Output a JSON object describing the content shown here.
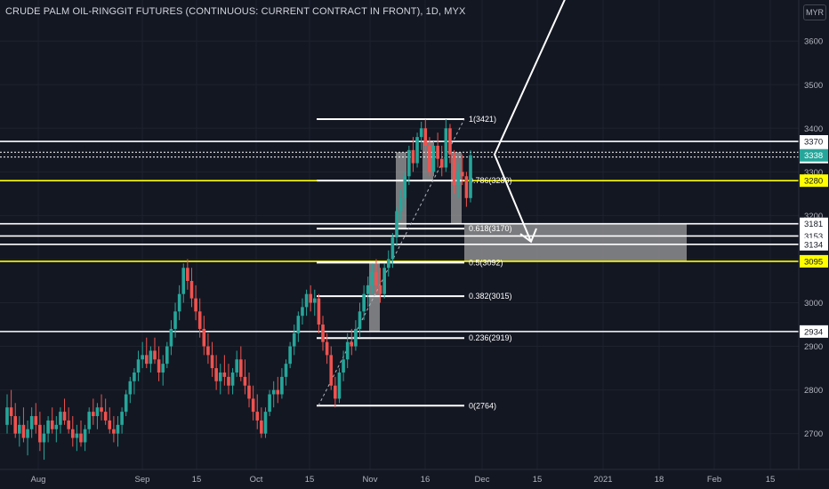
{
  "title": "CRUDE PALM OIL-RINGGIT FUTURES (CONTINUOUS: CURRENT CONTRACT IN FRONT), 1D, MYX",
  "currency": "MYR",
  "colors": {
    "background": "#131722",
    "up": "#26a69a",
    "down": "#ef5350",
    "axis_text": "#b2b5be",
    "line": "#ffffff",
    "highlight": "#ffff00",
    "zone": "#9e9e9e"
  },
  "chart_data": {
    "type": "candlestick",
    "title": "CRUDE PALM OIL-RINGGIT FUTURES (CONTINUOUS: CURRENT CONTRACT IN FRONT), 1D, MYX",
    "ylim": [
      2620,
      3670
    ],
    "y_ticks": [
      2700,
      2800,
      2900,
      3000,
      3100,
      3200,
      3300,
      3400,
      3500,
      3600
    ],
    "x_ticks": [
      "Aug",
      "Sep",
      "15",
      "Oct",
      "15",
      "Nov",
      "16",
      "Dec",
      "15",
      "2021",
      "18",
      "Feb",
      "15"
    ],
    "candles": [
      {
        "o": 2720,
        "h": 2790,
        "l": 2700,
        "c": 2760
      },
      {
        "o": 2760,
        "h": 2800,
        "l": 2720,
        "c": 2740
      },
      {
        "o": 2740,
        "h": 2770,
        "l": 2690,
        "c": 2700
      },
      {
        "o": 2700,
        "h": 2740,
        "l": 2670,
        "c": 2720
      },
      {
        "o": 2720,
        "h": 2760,
        "l": 2680,
        "c": 2690
      },
      {
        "o": 2690,
        "h": 2730,
        "l": 2650,
        "c": 2710
      },
      {
        "o": 2710,
        "h": 2760,
        "l": 2690,
        "c": 2740
      },
      {
        "o": 2740,
        "h": 2770,
        "l": 2700,
        "c": 2720
      },
      {
        "o": 2720,
        "h": 2750,
        "l": 2660,
        "c": 2680
      },
      {
        "o": 2680,
        "h": 2720,
        "l": 2640,
        "c": 2700
      },
      {
        "o": 2700,
        "h": 2740,
        "l": 2680,
        "c": 2730
      },
      {
        "o": 2730,
        "h": 2760,
        "l": 2700,
        "c": 2710
      },
      {
        "o": 2710,
        "h": 2740,
        "l": 2680,
        "c": 2720
      },
      {
        "o": 2720,
        "h": 2760,
        "l": 2700,
        "c": 2750
      },
      {
        "o": 2750,
        "h": 2780,
        "l": 2720,
        "c": 2730
      },
      {
        "o": 2730,
        "h": 2760,
        "l": 2700,
        "c": 2710
      },
      {
        "o": 2710,
        "h": 2740,
        "l": 2670,
        "c": 2690
      },
      {
        "o": 2690,
        "h": 2720,
        "l": 2660,
        "c": 2700
      },
      {
        "o": 2700,
        "h": 2730,
        "l": 2670,
        "c": 2680
      },
      {
        "o": 2680,
        "h": 2720,
        "l": 2660,
        "c": 2710
      },
      {
        "o": 2710,
        "h": 2760,
        "l": 2700,
        "c": 2750
      },
      {
        "o": 2750,
        "h": 2780,
        "l": 2720,
        "c": 2740
      },
      {
        "o": 2740,
        "h": 2770,
        "l": 2710,
        "c": 2760
      },
      {
        "o": 2760,
        "h": 2790,
        "l": 2730,
        "c": 2750
      },
      {
        "o": 2750,
        "h": 2780,
        "l": 2720,
        "c": 2730
      },
      {
        "o": 2730,
        "h": 2760,
        "l": 2700,
        "c": 2710
      },
      {
        "o": 2710,
        "h": 2740,
        "l": 2680,
        "c": 2700
      },
      {
        "o": 2700,
        "h": 2740,
        "l": 2670,
        "c": 2720
      },
      {
        "o": 2720,
        "h": 2760,
        "l": 2700,
        "c": 2750
      },
      {
        "o": 2750,
        "h": 2800,
        "l": 2740,
        "c": 2790
      },
      {
        "o": 2790,
        "h": 2830,
        "l": 2770,
        "c": 2820
      },
      {
        "o": 2820,
        "h": 2850,
        "l": 2790,
        "c": 2840
      },
      {
        "o": 2840,
        "h": 2890,
        "l": 2820,
        "c": 2870
      },
      {
        "o": 2870,
        "h": 2910,
        "l": 2850,
        "c": 2880
      },
      {
        "o": 2880,
        "h": 2920,
        "l": 2850,
        "c": 2860
      },
      {
        "o": 2860,
        "h": 2900,
        "l": 2840,
        "c": 2890
      },
      {
        "o": 2890,
        "h": 2920,
        "l": 2860,
        "c": 2870
      },
      {
        "o": 2870,
        "h": 2900,
        "l": 2820,
        "c": 2840
      },
      {
        "o": 2840,
        "h": 2880,
        "l": 2810,
        "c": 2860
      },
      {
        "o": 2860,
        "h": 2910,
        "l": 2850,
        "c": 2900
      },
      {
        "o": 2900,
        "h": 2960,
        "l": 2880,
        "c": 2940
      },
      {
        "o": 2940,
        "h": 3000,
        "l": 2920,
        "c": 2980
      },
      {
        "o": 2980,
        "h": 3040,
        "l": 2960,
        "c": 3020
      },
      {
        "o": 3020,
        "h": 3090,
        "l": 3000,
        "c": 3080
      },
      {
        "o": 3080,
        "h": 3100,
        "l": 3030,
        "c": 3050
      },
      {
        "o": 3050,
        "h": 3080,
        "l": 2990,
        "c": 3010
      },
      {
        "o": 3010,
        "h": 3040,
        "l": 2960,
        "c": 2980
      },
      {
        "o": 2980,
        "h": 3010,
        "l": 2920,
        "c": 2940
      },
      {
        "o": 2940,
        "h": 2970,
        "l": 2880,
        "c": 2900
      },
      {
        "o": 2900,
        "h": 2930,
        "l": 2860,
        "c": 2880
      },
      {
        "o": 2880,
        "h": 2910,
        "l": 2830,
        "c": 2850
      },
      {
        "o": 2850,
        "h": 2880,
        "l": 2800,
        "c": 2820
      },
      {
        "o": 2820,
        "h": 2860,
        "l": 2790,
        "c": 2840
      },
      {
        "o": 2840,
        "h": 2880,
        "l": 2810,
        "c": 2830
      },
      {
        "o": 2830,
        "h": 2860,
        "l": 2790,
        "c": 2810
      },
      {
        "o": 2810,
        "h": 2850,
        "l": 2790,
        "c": 2840
      },
      {
        "o": 2840,
        "h": 2890,
        "l": 2830,
        "c": 2870
      },
      {
        "o": 2870,
        "h": 2900,
        "l": 2820,
        "c": 2830
      },
      {
        "o": 2830,
        "h": 2870,
        "l": 2790,
        "c": 2810
      },
      {
        "o": 2810,
        "h": 2840,
        "l": 2760,
        "c": 2780
      },
      {
        "o": 2780,
        "h": 2810,
        "l": 2730,
        "c": 2750
      },
      {
        "o": 2750,
        "h": 2790,
        "l": 2710,
        "c": 2730
      },
      {
        "o": 2730,
        "h": 2760,
        "l": 2690,
        "c": 2700
      },
      {
        "o": 2700,
        "h": 2760,
        "l": 2690,
        "c": 2750
      },
      {
        "o": 2750,
        "h": 2800,
        "l": 2740,
        "c": 2790
      },
      {
        "o": 2790,
        "h": 2820,
        "l": 2760,
        "c": 2800
      },
      {
        "o": 2800,
        "h": 2830,
        "l": 2770,
        "c": 2790
      },
      {
        "o": 2790,
        "h": 2850,
        "l": 2780,
        "c": 2830
      },
      {
        "o": 2830,
        "h": 2870,
        "l": 2810,
        "c": 2860
      },
      {
        "o": 2860,
        "h": 2910,
        "l": 2850,
        "c": 2900
      },
      {
        "o": 2900,
        "h": 2950,
        "l": 2880,
        "c": 2930
      },
      {
        "o": 2930,
        "h": 2980,
        "l": 2910,
        "c": 2970
      },
      {
        "o": 2970,
        "h": 3010,
        "l": 2950,
        "c": 2990
      },
      {
        "o": 2990,
        "h": 3030,
        "l": 2970,
        "c": 3020
      },
      {
        "o": 3020,
        "h": 3040,
        "l": 2980,
        "c": 3000
      },
      {
        "o": 3000,
        "h": 3030,
        "l": 2970,
        "c": 3010
      },
      {
        "o": 3010,
        "h": 3020,
        "l": 2930,
        "c": 2950
      },
      {
        "o": 2950,
        "h": 2970,
        "l": 2890,
        "c": 2910
      },
      {
        "o": 2910,
        "h": 2930,
        "l": 2860,
        "c": 2880
      },
      {
        "o": 2880,
        "h": 2900,
        "l": 2800,
        "c": 2810
      },
      {
        "o": 2810,
        "h": 2830,
        "l": 2760,
        "c": 2780
      },
      {
        "o": 2780,
        "h": 2850,
        "l": 2770,
        "c": 2840
      },
      {
        "o": 2840,
        "h": 2890,
        "l": 2820,
        "c": 2870
      },
      {
        "o": 2870,
        "h": 2930,
        "l": 2850,
        "c": 2910
      },
      {
        "o": 2910,
        "h": 2940,
        "l": 2880,
        "c": 2900
      },
      {
        "o": 2900,
        "h": 2960,
        "l": 2890,
        "c": 2940
      },
      {
        "o": 2940,
        "h": 3000,
        "l": 2920,
        "c": 2980
      },
      {
        "o": 2980,
        "h": 3040,
        "l": 2960,
        "c": 3020
      },
      {
        "o": 3020,
        "h": 3060,
        "l": 2990,
        "c": 3040
      },
      {
        "o": 3040,
        "h": 3090,
        "l": 3020,
        "c": 3070
      },
      {
        "o": 3070,
        "h": 3100,
        "l": 3020,
        "c": 3040
      },
      {
        "o": 3040,
        "h": 3080,
        "l": 3000,
        "c": 3020
      },
      {
        "o": 3020,
        "h": 3090,
        "l": 3010,
        "c": 3080
      },
      {
        "o": 3080,
        "h": 3120,
        "l": 3060,
        "c": 3100
      },
      {
        "o": 3100,
        "h": 3160,
        "l": 3080,
        "c": 3150
      },
      {
        "o": 3150,
        "h": 3220,
        "l": 3130,
        "c": 3210
      },
      {
        "o": 3210,
        "h": 3260,
        "l": 3190,
        "c": 3240
      },
      {
        "o": 3240,
        "h": 3300,
        "l": 3220,
        "c": 3290
      },
      {
        "o": 3290,
        "h": 3360,
        "l": 3270,
        "c": 3350
      },
      {
        "o": 3350,
        "h": 3380,
        "l": 3300,
        "c": 3320
      },
      {
        "o": 3320,
        "h": 3390,
        "l": 3310,
        "c": 3380
      },
      {
        "o": 3380,
        "h": 3415,
        "l": 3350,
        "c": 3400
      },
      {
        "o": 3400,
        "h": 3420,
        "l": 3340,
        "c": 3360
      },
      {
        "o": 3360,
        "h": 3380,
        "l": 3290,
        "c": 3300
      },
      {
        "o": 3300,
        "h": 3370,
        "l": 3290,
        "c": 3360
      },
      {
        "o": 3360,
        "h": 3390,
        "l": 3310,
        "c": 3330
      },
      {
        "o": 3330,
        "h": 3360,
        "l": 3290,
        "c": 3310
      },
      {
        "o": 3310,
        "h": 3421,
        "l": 3300,
        "c": 3400
      },
      {
        "o": 3400,
        "h": 3410,
        "l": 3320,
        "c": 3340
      },
      {
        "o": 3340,
        "h": 3350,
        "l": 3250,
        "c": 3270
      },
      {
        "o": 3270,
        "h": 3320,
        "l": 3240,
        "c": 3300
      },
      {
        "o": 3300,
        "h": 3340,
        "l": 3270,
        "c": 3290
      },
      {
        "o": 3290,
        "h": 3300,
        "l": 3220,
        "c": 3240
      },
      {
        "o": 3240,
        "h": 3350,
        "l": 3230,
        "c": 3338
      }
    ],
    "fib_levels": [
      {
        "ratio": "1",
        "price": 3421,
        "label": "1(3421)"
      },
      {
        "ratio": "0.786",
        "price": 3280,
        "label": "0.786(3280)"
      },
      {
        "ratio": "0.618",
        "price": 3170,
        "label": "0.618(3170)"
      },
      {
        "ratio": "0.5",
        "price": 3092,
        "label": "0.5(3092)"
      },
      {
        "ratio": "0.382",
        "price": 3015,
        "label": "0.382(3015)"
      },
      {
        "ratio": "0.236",
        "price": 2919,
        "label": "0.236(2919)"
      },
      {
        "ratio": "0",
        "price": 2764,
        "label": "0(2764)"
      }
    ],
    "horizontal_lines": [
      {
        "price": 3370,
        "label": "3370",
        "color": "white"
      },
      {
        "price": 3345,
        "label": "3345",
        "color": "white",
        "dotted": true
      },
      {
        "price": 3334,
        "label": "3334",
        "color": "white",
        "dotted": true
      },
      {
        "price": 3280,
        "label": "3280",
        "color": "yellow"
      },
      {
        "price": 3181,
        "label": "3181",
        "color": "white"
      },
      {
        "price": 3153,
        "label": "3153",
        "color": "white"
      },
      {
        "price": 3134,
        "label": "3134",
        "color": "white"
      },
      {
        "price": 3095,
        "label": "3095",
        "color": "yellow"
      },
      {
        "price": 2934,
        "label": "2934",
        "color": "white"
      }
    ],
    "last_price": {
      "price": 3338,
      "label": "3338"
    },
    "target_zone": {
      "top": 3181,
      "bottom": 3095
    },
    "price_projection": [
      3700,
      3340,
      3140
    ]
  }
}
